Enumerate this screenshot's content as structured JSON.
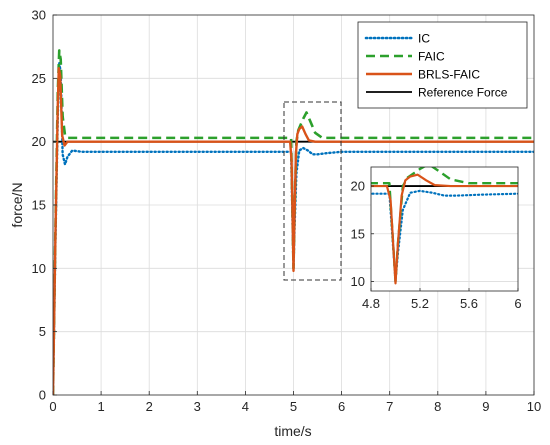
{
  "chart_data": {
    "type": "line",
    "title": "",
    "xlabel": "time/s",
    "ylabel": "force/N",
    "xlim": [
      0,
      10
    ],
    "ylim": [
      0,
      30
    ],
    "xticks": [
      "0",
      "1",
      "2",
      "3",
      "4",
      "5",
      "6",
      "7",
      "8",
      "9",
      "10"
    ],
    "yticks": [
      "0",
      "5",
      "10",
      "15",
      "20",
      "25",
      "30"
    ],
    "grid": true,
    "legend_position": "top-right",
    "series": [
      {
        "name": "IC",
        "color": "#0072BD",
        "style": "dotted",
        "points": [
          [
            0,
            0
          ],
          [
            0.05,
            12
          ],
          [
            0.1,
            22
          ],
          [
            0.13,
            26.2
          ],
          [
            0.16,
            25.5
          ],
          [
            0.2,
            19
          ],
          [
            0.25,
            18.2
          ],
          [
            0.3,
            18.8
          ],
          [
            0.4,
            19.3
          ],
          [
            0.6,
            19.2
          ],
          [
            1,
            19.2
          ],
          [
            2,
            19.2
          ],
          [
            3,
            19.2
          ],
          [
            4,
            19.2
          ],
          [
            4.95,
            19.2
          ],
          [
            5.0,
            10
          ],
          [
            5.02,
            13
          ],
          [
            5.06,
            17.5
          ],
          [
            5.12,
            19.3
          ],
          [
            5.2,
            19.5
          ],
          [
            5.3,
            19.3
          ],
          [
            5.4,
            19.0
          ],
          [
            5.5,
            19.0
          ],
          [
            5.7,
            19.1
          ],
          [
            6,
            19.2
          ],
          [
            7,
            19.2
          ],
          [
            8,
            19.2
          ],
          [
            9,
            19.2
          ],
          [
            10,
            19.2
          ]
        ]
      },
      {
        "name": "FAIC",
        "color": "#2CA02C",
        "style": "dashed",
        "points": [
          [
            0,
            0
          ],
          [
            0.05,
            13
          ],
          [
            0.1,
            24
          ],
          [
            0.13,
            27.2
          ],
          [
            0.16,
            26.5
          ],
          [
            0.2,
            22
          ],
          [
            0.25,
            20.5
          ],
          [
            0.3,
            20.3
          ],
          [
            0.5,
            20.3
          ],
          [
            1,
            20.3
          ],
          [
            2,
            20.3
          ],
          [
            3,
            20.3
          ],
          [
            4,
            20.3
          ],
          [
            4.95,
            20.3
          ],
          [
            5.0,
            10
          ],
          [
            5.02,
            14
          ],
          [
            5.06,
            20
          ],
          [
            5.1,
            20.9
          ],
          [
            5.2,
            21.8
          ],
          [
            5.27,
            22.3
          ],
          [
            5.35,
            21.6
          ],
          [
            5.45,
            20.7
          ],
          [
            5.6,
            20.3
          ],
          [
            6,
            20.3
          ],
          [
            7,
            20.3
          ],
          [
            8,
            20.3
          ],
          [
            9,
            20.3
          ],
          [
            10,
            20.3
          ]
        ]
      },
      {
        "name": "BRLS-FAIC",
        "color": "#D95319",
        "style": "solid",
        "points": [
          [
            0,
            0
          ],
          [
            0.05,
            12.5
          ],
          [
            0.1,
            23
          ],
          [
            0.12,
            25.8
          ],
          [
            0.15,
            25.2
          ],
          [
            0.19,
            20.5
          ],
          [
            0.24,
            19.7
          ],
          [
            0.3,
            20.0
          ],
          [
            0.5,
            20.0
          ],
          [
            1,
            20.0
          ],
          [
            2,
            20.0
          ],
          [
            3,
            20.0
          ],
          [
            4,
            20.0
          ],
          [
            4.93,
            20.0
          ],
          [
            4.96,
            18.5
          ],
          [
            5.0,
            9.8
          ],
          [
            5.02,
            14
          ],
          [
            5.05,
            19
          ],
          [
            5.08,
            20.6
          ],
          [
            5.12,
            21.0
          ],
          [
            5.18,
            21.2
          ],
          [
            5.25,
            20.6
          ],
          [
            5.32,
            20.1
          ],
          [
            5.45,
            20.0
          ],
          [
            6,
            20.0
          ],
          [
            7,
            20.0
          ],
          [
            8,
            20.0
          ],
          [
            9,
            20.0
          ],
          [
            10,
            20.0
          ]
        ]
      },
      {
        "name": "Reference Force",
        "color": "#000000",
        "style": "solid",
        "points": [
          [
            0,
            20
          ],
          [
            10,
            20
          ]
        ]
      }
    ],
    "inset": {
      "xlim": [
        4.8,
        6
      ],
      "ylim": [
        9,
        22
      ],
      "xticks": [
        "4.8",
        "5.2",
        "5.6",
        "6"
      ],
      "yticks": [
        "10",
        "15",
        "20"
      ],
      "grid": true,
      "source_region": {
        "xlim": [
          4.8,
          6
        ],
        "ylim": [
          9,
          22
        ]
      }
    }
  }
}
